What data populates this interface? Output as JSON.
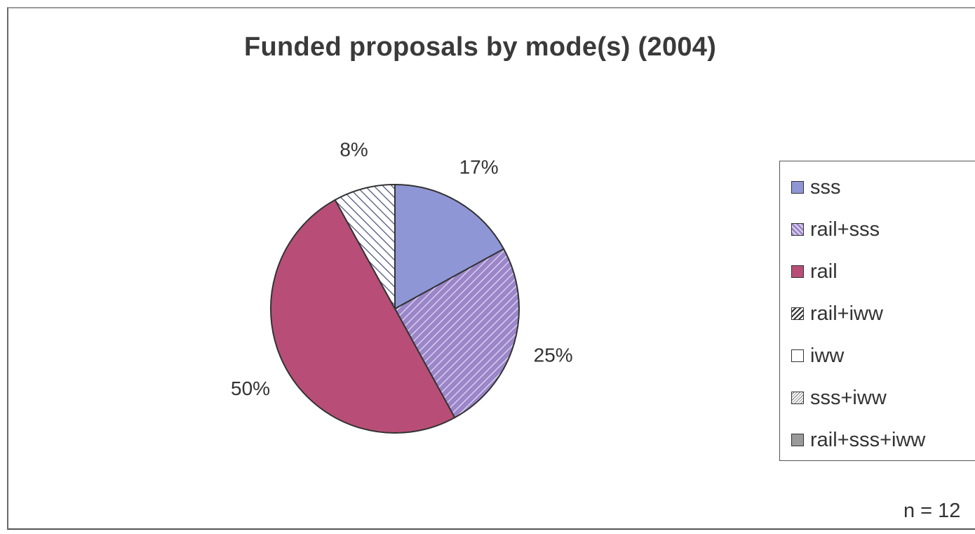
{
  "chart_data": {
    "type": "pie",
    "title": "Funded proposals by mode(s) (2004)",
    "slices": [
      {
        "label": "sss",
        "value": 17,
        "display": "17%",
        "color": "#8f96d6",
        "pattern": "solid"
      },
      {
        "label": "rail+sss",
        "value": 25,
        "display": "25%",
        "color": "#9b86c9",
        "pattern": "hatch"
      },
      {
        "label": "rail",
        "value": 50,
        "display": "50%",
        "color": "#b84e77",
        "pattern": "solid"
      },
      {
        "label": "rail+iww",
        "value": 8,
        "display": "8%",
        "color": "#ffffff",
        "pattern": "hatch-dark"
      }
    ],
    "legend": [
      {
        "label": "sss",
        "color": "#8f96d6",
        "pattern": "solid"
      },
      {
        "label": "rail+sss",
        "color": "#9b86c9",
        "pattern": "hatch"
      },
      {
        "label": "rail",
        "color": "#b84e77",
        "pattern": "solid"
      },
      {
        "label": "rail+iww",
        "color": "#ffffff",
        "pattern": "hatch-dark"
      },
      {
        "label": "iww",
        "color": "#ffffff",
        "pattern": "solid"
      },
      {
        "label": "sss+iww",
        "color": "#ffffff",
        "pattern": "hatch-light"
      },
      {
        "label": "rail+sss+iww",
        "color": "#9a9a9a",
        "pattern": "solid"
      }
    ],
    "legend_position": "right",
    "note": "n = 12"
  }
}
